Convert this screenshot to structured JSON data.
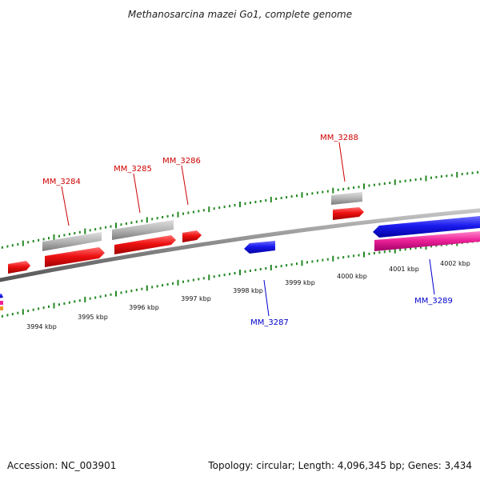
{
  "title": "Methanosarcina mazei Go1, complete genome",
  "footer": {
    "accession": "Accession: NC_003901",
    "summary": "Topology: circular; Length: 4,096,345 bp; Genes: 3,434"
  },
  "colors": {
    "forward_gene": "#ee1111",
    "reverse_gene": "#1a1aee",
    "gray_feature": "#b4b4b4",
    "pink_feature": "#ee2299",
    "ticks": "#228822",
    "backbone": "#888888",
    "label_forward": "#cc0000",
    "label_reverse": "#0000cc"
  },
  "kbp_labels": [
    "3994 kbp",
    "3995 kbp",
    "3996 kbp",
    "3997 kbp",
    "3998 kbp",
    "3999 kbp",
    "4000 kbp",
    "4001 kbp",
    "4002 kbp"
  ],
  "gene_labels": [
    {
      "name": "MM_3284",
      "strand": "forward"
    },
    {
      "name": "MM_3285",
      "strand": "forward"
    },
    {
      "name": "MM_3286",
      "strand": "forward"
    },
    {
      "name": "MM_3288",
      "strand": "forward"
    },
    {
      "name": "MM_3287",
      "strand": "reverse"
    },
    {
      "name": "MM_3289",
      "strand": "reverse"
    }
  ]
}
